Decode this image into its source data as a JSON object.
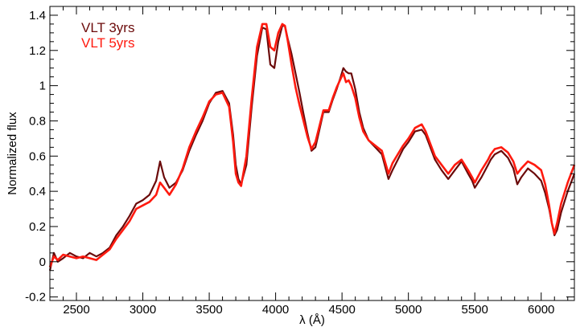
{
  "chart_data": {
    "type": "line",
    "title": "",
    "xlabel": "λ (Å)",
    "ylabel": "Normalized flux",
    "xlim": [
      2300,
      6250
    ],
    "ylim": [
      -0.22,
      1.45
    ],
    "x_ticks": [
      2500,
      3000,
      3500,
      4000,
      4500,
      5000,
      5500,
      6000
    ],
    "x_tick_labels": [
      "2500",
      "3000",
      "3500",
      "4000",
      "4500",
      "5000",
      "5500",
      "6000"
    ],
    "y_ticks": [
      -0.2,
      0,
      0.2,
      0.4,
      0.6,
      0.8,
      1,
      1.2,
      1.4
    ],
    "y_tick_labels": [
      "-0.2",
      "0",
      "0.2",
      "0.4",
      "0.6",
      "0.8",
      "1",
      "1.2",
      "1.4"
    ],
    "grid": false,
    "legend_position": "top-left",
    "series": [
      {
        "name": "VLT 3yrs",
        "color": "#6b0a0a",
        "x": [
          2300,
          2330,
          2360,
          2400,
          2450,
          2500,
          2550,
          2600,
          2650,
          2700,
          2750,
          2800,
          2850,
          2900,
          2950,
          3000,
          3050,
          3100,
          3130,
          3160,
          3200,
          3250,
          3300,
          3350,
          3400,
          3450,
          3500,
          3550,
          3600,
          3650,
          3680,
          3700,
          3720,
          3740,
          3780,
          3820,
          3860,
          3900,
          3930,
          3960,
          3990,
          4020,
          4050,
          4070,
          4090,
          4120,
          4150,
          4180,
          4210,
          4240,
          4270,
          4300,
          4330,
          4360,
          4400,
          4430,
          4460,
          4490,
          4510,
          4530,
          4550,
          4570,
          4600,
          4630,
          4660,
          4700,
          4750,
          4800,
          4850,
          4880,
          4920,
          4960,
          5000,
          5050,
          5100,
          5130,
          5160,
          5200,
          5250,
          5300,
          5350,
          5400,
          5450,
          5480,
          5500,
          5550,
          5600,
          5620,
          5650,
          5700,
          5750,
          5790,
          5820,
          5850,
          5900,
          5950,
          6000,
          6030,
          6060,
          6080,
          6100,
          6120,
          6150,
          6200,
          6250
        ],
        "y": [
          -0.05,
          0.05,
          0.0,
          0.02,
          0.05,
          0.03,
          0.02,
          0.05,
          0.03,
          0.05,
          0.08,
          0.15,
          0.2,
          0.26,
          0.33,
          0.35,
          0.38,
          0.46,
          0.57,
          0.48,
          0.42,
          0.45,
          0.52,
          0.63,
          0.72,
          0.8,
          0.9,
          0.96,
          0.97,
          0.9,
          0.72,
          0.55,
          0.47,
          0.44,
          0.55,
          0.88,
          1.17,
          1.33,
          1.32,
          1.12,
          1.1,
          1.25,
          1.34,
          1.34,
          1.27,
          1.18,
          1.07,
          0.96,
          0.84,
          0.73,
          0.63,
          0.65,
          0.75,
          0.85,
          0.85,
          0.92,
          0.98,
          1.05,
          1.1,
          1.08,
          1.07,
          1.07,
          0.98,
          0.85,
          0.76,
          0.69,
          0.65,
          0.61,
          0.47,
          0.52,
          0.58,
          0.64,
          0.68,
          0.74,
          0.75,
          0.72,
          0.66,
          0.58,
          0.52,
          0.47,
          0.52,
          0.57,
          0.5,
          0.46,
          0.42,
          0.48,
          0.55,
          0.58,
          0.61,
          0.63,
          0.59,
          0.53,
          0.44,
          0.48,
          0.53,
          0.5,
          0.46,
          0.39,
          0.3,
          0.22,
          0.15,
          0.18,
          0.28,
          0.4,
          0.5
        ]
      },
      {
        "name": "VLT 5yrs",
        "color": "#ff1a0f",
        "x": [
          2300,
          2330,
          2360,
          2400,
          2450,
          2500,
          2550,
          2600,
          2650,
          2700,
          2750,
          2800,
          2850,
          2900,
          2950,
          3000,
          3050,
          3100,
          3130,
          3160,
          3200,
          3250,
          3300,
          3350,
          3400,
          3450,
          3500,
          3550,
          3600,
          3650,
          3680,
          3700,
          3720,
          3740,
          3780,
          3820,
          3860,
          3900,
          3930,
          3960,
          3990,
          4020,
          4050,
          4070,
          4090,
          4120,
          4150,
          4180,
          4210,
          4240,
          4270,
          4300,
          4330,
          4360,
          4400,
          4430,
          4460,
          4490,
          4510,
          4530,
          4550,
          4570,
          4600,
          4630,
          4660,
          4700,
          4750,
          4800,
          4850,
          4880,
          4920,
          4960,
          5000,
          5050,
          5100,
          5130,
          5160,
          5200,
          5250,
          5300,
          5350,
          5400,
          5450,
          5480,
          5500,
          5550,
          5600,
          5620,
          5650,
          5700,
          5750,
          5790,
          5820,
          5850,
          5900,
          5950,
          6000,
          6030,
          6060,
          6080,
          6100,
          6120,
          6150,
          6200,
          6250
        ],
        "y": [
          -0.03,
          0.03,
          0.01,
          0.04,
          0.03,
          0.02,
          0.03,
          0.02,
          0.01,
          0.04,
          0.07,
          0.13,
          0.18,
          0.23,
          0.3,
          0.32,
          0.34,
          0.38,
          0.45,
          0.42,
          0.38,
          0.44,
          0.53,
          0.65,
          0.74,
          0.82,
          0.91,
          0.95,
          0.96,
          0.88,
          0.68,
          0.5,
          0.45,
          0.43,
          0.6,
          0.93,
          1.22,
          1.35,
          1.35,
          1.22,
          1.2,
          1.3,
          1.35,
          1.34,
          1.26,
          1.12,
          0.99,
          0.89,
          0.8,
          0.71,
          0.64,
          0.68,
          0.77,
          0.86,
          0.86,
          0.93,
          0.99,
          1.04,
          1.07,
          1.02,
          1.03,
          1.0,
          0.93,
          0.82,
          0.74,
          0.69,
          0.66,
          0.63,
          0.5,
          0.56,
          0.61,
          0.66,
          0.7,
          0.76,
          0.78,
          0.74,
          0.68,
          0.6,
          0.55,
          0.5,
          0.55,
          0.58,
          0.52,
          0.48,
          0.45,
          0.52,
          0.58,
          0.61,
          0.64,
          0.65,
          0.62,
          0.57,
          0.5,
          0.53,
          0.57,
          0.55,
          0.52,
          0.44,
          0.32,
          0.22,
          0.16,
          0.22,
          0.33,
          0.45,
          0.55
        ]
      }
    ]
  }
}
